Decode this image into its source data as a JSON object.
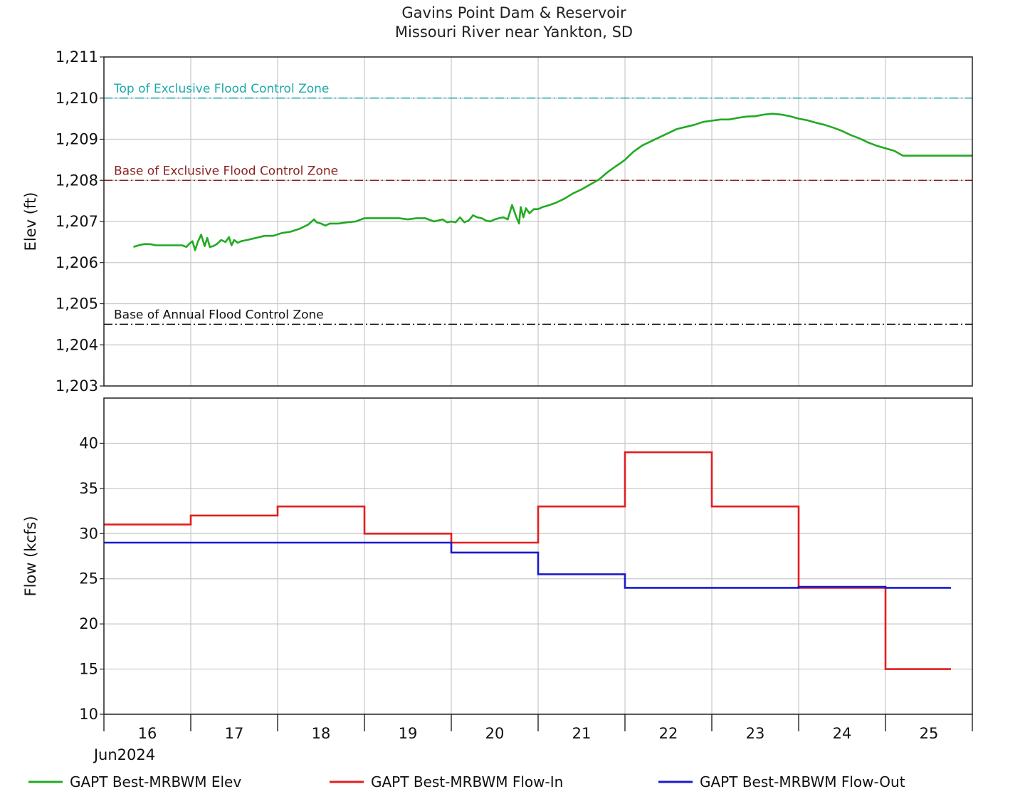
{
  "title": "Gavins Point Dam & Reservoir",
  "subtitle": "Missouri River near Yankton, SD",
  "colors": {
    "elev": "#22aa22",
    "flow_in": "#e02020",
    "flow_out": "#1a1acc",
    "top_excl": "#20a8a8",
    "base_excl": "#8b2323",
    "base_annual": "#111111",
    "grid": "#c8c8c8"
  },
  "chart_data": [
    {
      "type": "line",
      "title": "",
      "ylabel": "Elev (ft)",
      "ylim": [
        1203,
        1211
      ],
      "yticks": [
        "1,203",
        "1,204",
        "1,205",
        "1,206",
        "1,207",
        "1,208",
        "1,209",
        "1,210",
        "1,211"
      ],
      "xlim": [
        15.5,
        25.5
      ],
      "grid": true,
      "reference_lines": [
        {
          "label": "Top of Exclusive Flood Control Zone",
          "y": 1210.0,
          "color": "#20a8a8"
        },
        {
          "label": "Base of Exclusive Flood Control Zone",
          "y": 1208.0,
          "color": "#8b2323"
        },
        {
          "label": "Base of Annual Flood Control Zone",
          "y": 1204.5,
          "color": "#111111"
        }
      ],
      "series": [
        {
          "name": "GAPT Best-MRBWM Elev",
          "color": "#22aa22",
          "x": [
            15.84,
            15.9,
            15.96,
            16.03,
            16.1,
            16.2,
            16.3,
            16.4,
            16.45,
            16.48,
            16.52,
            16.55,
            16.58,
            16.62,
            16.66,
            16.69,
            16.72,
            16.76,
            16.8,
            16.85,
            16.9,
            16.94,
            16.97,
            17.0,
            17.04,
            17.08,
            17.15,
            17.25,
            17.35,
            17.45,
            17.55,
            17.65,
            17.75,
            17.85,
            17.92,
            17.95,
            18.0,
            18.05,
            18.1,
            18.2,
            18.3,
            18.4,
            18.5,
            18.6,
            18.7,
            18.8,
            18.9,
            19.0,
            19.1,
            19.2,
            19.3,
            19.4,
            19.45,
            19.5,
            19.55,
            19.6,
            19.65,
            19.7,
            19.75,
            19.8,
            19.85,
            19.9,
            19.95,
            20.0,
            20.05,
            20.1,
            20.15,
            20.2,
            20.25,
            20.28,
            20.3,
            20.33,
            20.36,
            20.4,
            20.45,
            20.5,
            20.55,
            20.6,
            20.7,
            20.8,
            20.9,
            21.0,
            21.1,
            21.2,
            21.3,
            21.4,
            21.45,
            21.5,
            21.55,
            21.6,
            21.7,
            21.8,
            21.9,
            22.0,
            22.1,
            22.2,
            22.3,
            22.4,
            22.5,
            22.6,
            22.7,
            22.8,
            22.9,
            23.0,
            23.1,
            23.2,
            23.3,
            23.4,
            23.5,
            23.6,
            23.7,
            23.8,
            23.9,
            24.0,
            24.1,
            24.2,
            24.3,
            24.4,
            24.5,
            24.6,
            24.7,
            24.8,
            24.9,
            25.0,
            25.1,
            25.2,
            25.3,
            25.4,
            25.5
          ],
          "y": [
            1206.38,
            1206.42,
            1206.45,
            1206.45,
            1206.42,
            1206.42,
            1206.42,
            1206.42,
            1206.38,
            1206.45,
            1206.52,
            1206.3,
            1206.5,
            1206.68,
            1206.4,
            1206.6,
            1206.38,
            1206.4,
            1206.45,
            1206.55,
            1206.5,
            1206.62,
            1206.42,
            1206.55,
            1206.48,
            1206.52,
            1206.55,
            1206.6,
            1206.65,
            1206.65,
            1206.72,
            1206.75,
            1206.82,
            1206.92,
            1207.05,
            1206.98,
            1206.95,
            1206.9,
            1206.95,
            1206.95,
            1206.98,
            1207.0,
            1207.08,
            1207.08,
            1207.08,
            1207.08,
            1207.08,
            1207.05,
            1207.08,
            1207.08,
            1207.0,
            1207.05,
            1206.98,
            1207.0,
            1206.98,
            1207.1,
            1206.98,
            1207.02,
            1207.15,
            1207.1,
            1207.08,
            1207.02,
            1207.0,
            1207.05,
            1207.08,
            1207.1,
            1207.05,
            1207.4,
            1207.1,
            1206.95,
            1207.35,
            1207.1,
            1207.32,
            1207.2,
            1207.3,
            1207.3,
            1207.35,
            1207.38,
            1207.45,
            1207.55,
            1207.68,
            1207.78,
            1207.9,
            1208.02,
            1208.2,
            1208.35,
            1208.42,
            1208.5,
            1208.6,
            1208.7,
            1208.85,
            1208.95,
            1209.05,
            1209.15,
            1209.25,
            1209.3,
            1209.35,
            1209.42,
            1209.45,
            1209.48,
            1209.48,
            1209.52,
            1209.55,
            1209.56,
            1209.6,
            1209.62,
            1209.6,
            1209.56,
            1209.5,
            1209.46,
            1209.4,
            1209.35,
            1209.28,
            1209.2,
            1209.1,
            1209.02,
            1208.92,
            1208.84,
            1208.78,
            1208.72,
            1208.6,
            1208.6,
            1208.6,
            1208.6,
            1208.6,
            1208.6,
            1208.6,
            1208.6,
            1208.6
          ]
        }
      ]
    },
    {
      "type": "line",
      "title": "",
      "ylabel": "Flow (kcfs)",
      "ylim": [
        10,
        45
      ],
      "yticks": [
        "10",
        "15",
        "20",
        "25",
        "30",
        "35",
        "40"
      ],
      "xlim": [
        15.5,
        25.5
      ],
      "categories": [
        "16",
        "17",
        "18",
        "19",
        "20",
        "21",
        "22",
        "23",
        "24",
        "25"
      ],
      "xlabel": "Jun2024",
      "grid": true,
      "series": [
        {
          "name": "GAPT Best-MRBWM Flow-In",
          "color": "#e02020",
          "step": true,
          "x": [
            15.5,
            16.5,
            17.5,
            18.5,
            19.5,
            20.5,
            21.5,
            22.5,
            23.5,
            24.5,
            25.5
          ],
          "y": [
            31,
            32,
            33,
            30,
            29,
            33,
            39,
            33,
            24,
            15,
            15
          ]
        },
        {
          "name": "GAPT Best-MRBWM Flow-Out",
          "color": "#1a1acc",
          "step": true,
          "x": [
            15.5,
            16.5,
            17.5,
            18.5,
            19.5,
            20.5,
            21.5,
            22.5,
            23.5,
            24.5,
            25.5
          ],
          "y": [
            29,
            29,
            29,
            29,
            27.9,
            25.5,
            24,
            24,
            24.1,
            24,
            24
          ]
        }
      ]
    }
  ],
  "legend": [
    {
      "label": "GAPT Best-MRBWM Elev",
      "color": "#22aa22"
    },
    {
      "label": "GAPT Best-MRBWM Flow-In",
      "color": "#e02020"
    },
    {
      "label": "GAPT Best-MRBWM Flow-Out",
      "color": "#1a1acc"
    }
  ]
}
